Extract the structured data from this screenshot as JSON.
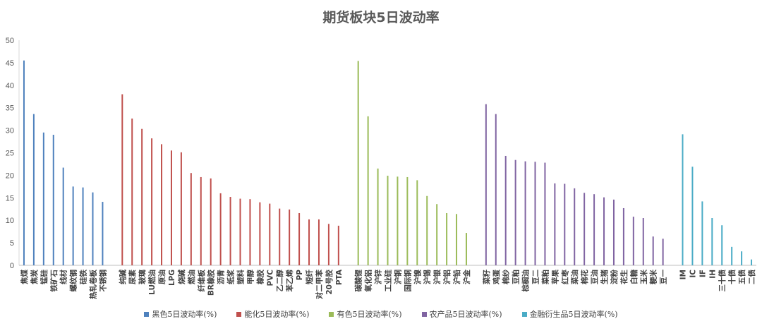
{
  "chart_data": {
    "type": "bar",
    "title": "期货板块5日波动率",
    "xlabel": "",
    "ylabel": "",
    "ylim": [
      0,
      50
    ],
    "yticks": [
      0,
      5,
      10,
      15,
      20,
      25,
      30,
      35,
      40,
      45,
      50
    ],
    "grid": false,
    "legend_position": "bottom",
    "series": [
      {
        "name": "黑色5日波动率(%)",
        "color": "#4F81BD",
        "categories": [
          "焦煤",
          "焦炭",
          "锰硅",
          "铁矿石",
          "线材",
          "螺纹钢",
          "硅铁",
          "热轧卷板",
          "不锈钢"
        ],
        "values": [
          45.5,
          33.6,
          29.5,
          29.0,
          21.7,
          17.5,
          17.3,
          16.2,
          14.1
        ]
      },
      {
        "name": "能化5日波动率(%)",
        "color": "#C0504D",
        "categories": [
          "纯碱",
          "尿素",
          "玻璃",
          "LU燃油",
          "原油",
          "LPG",
          "烧碱",
          "燃油",
          "纤维板",
          "BR橡胶",
          "沥青",
          "纸浆",
          "塑料",
          "甲醇",
          "橡胶",
          "PVC",
          "乙二醇",
          "苯乙烯",
          "PP",
          "短纤",
          "对二甲苯",
          "20号胶",
          "PTA"
        ],
        "values": [
          38.0,
          32.6,
          30.3,
          28.2,
          26.9,
          25.5,
          25.1,
          20.5,
          19.6,
          19.3,
          16.0,
          15.2,
          14.8,
          14.7,
          14.0,
          13.7,
          12.6,
          12.4,
          11.6,
          10.2,
          10.2,
          9.2,
          8.8
        ]
      },
      {
        "name": "有色5日波动率(%)",
        "color": "#9BBB59",
        "categories": [
          "碳酸锂",
          "氧化铝",
          "沪锌",
          "工业硅",
          "沪铜",
          "国际铜",
          "沪镍",
          "沪锡",
          "沪银",
          "沪铝",
          "沪铅",
          "沪金"
        ],
        "values": [
          45.4,
          33.1,
          21.5,
          19.9,
          19.7,
          19.6,
          18.9,
          15.4,
          13.6,
          11.6,
          11.4,
          7.2
        ]
      },
      {
        "name": "农产品5日波动率(%)",
        "color": "#8064A2",
        "categories": [
          "菜籽",
          "鸡蛋",
          "棉纱",
          "豆粕",
          "棕榈油",
          "豆二",
          "菜粕",
          "苹果",
          "红枣",
          "菜油",
          "棉花",
          "豆油",
          "生猪",
          "淀粉",
          "花生",
          "白糖",
          "玉米",
          "粳米",
          "豆一"
        ],
        "values": [
          35.8,
          33.6,
          24.3,
          23.4,
          23.1,
          23.0,
          22.8,
          18.2,
          18.1,
          17.1,
          16.1,
          15.8,
          15.1,
          14.6,
          12.7,
          10.8,
          10.5,
          6.4,
          5.9
        ]
      },
      {
        "name": "金融衍生品5日波动率(%)",
        "color": "#4BACC6",
        "categories": [
          "IM",
          "IC",
          "IF",
          "IH",
          "三十债",
          "十债",
          "五债",
          "二债"
        ],
        "values": [
          29.1,
          21.9,
          14.2,
          10.5,
          8.9,
          4.1,
          3.1,
          1.3
        ]
      }
    ]
  }
}
